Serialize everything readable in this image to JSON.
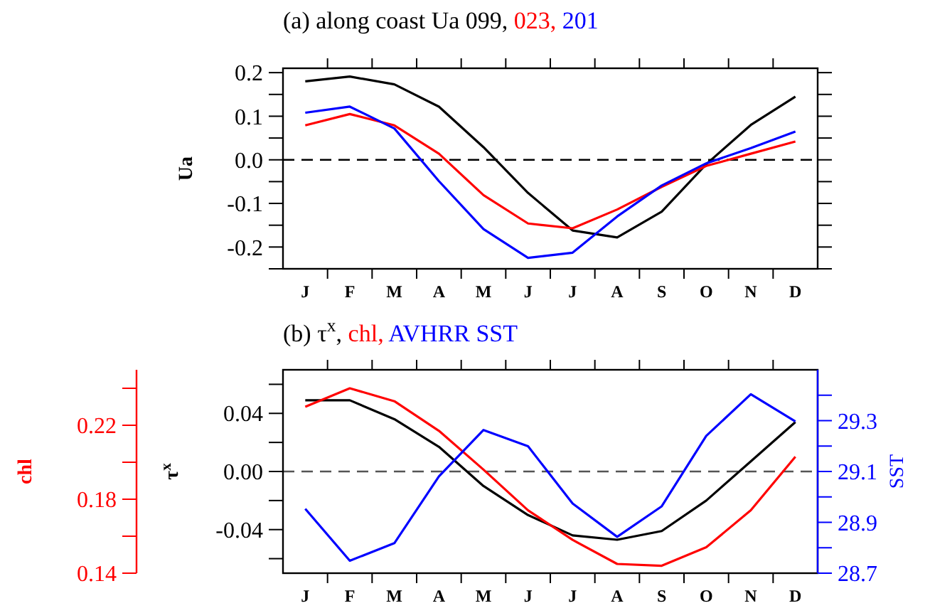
{
  "chart_data": [
    {
      "type": "line",
      "title": "(a) along coast Ua",
      "ylabel": "Ua",
      "categories": [
        "J",
        "F",
        "M",
        "A",
        "M",
        "J",
        "J",
        "A",
        "S",
        "O",
        "N",
        "D"
      ],
      "ylim": [
        -0.25,
        0.21
      ],
      "yticks": [
        {
          "value": -0.25,
          "label": null
        },
        {
          "value": -0.2,
          "label": "-0.2"
        },
        {
          "value": -0.15,
          "label": null
        },
        {
          "value": -0.1,
          "label": "-0.1"
        },
        {
          "value": -0.05,
          "label": null
        },
        {
          "value": 0,
          "label": "0.0"
        },
        {
          "value": 0.05,
          "label": null
        },
        {
          "value": 0.1,
          "label": "0.1"
        },
        {
          "value": 0.15,
          "label": null
        },
        {
          "value": 0.2,
          "label": "0.2"
        }
      ],
      "ref_lines": [
        {
          "axis": "y",
          "value": 0,
          "color": "#000000",
          "line_style": "dashed"
        }
      ],
      "series": [
        {
          "name": "099,",
          "color": "#000000",
          "values": [
            0.18,
            0.191,
            0.173,
            0.122,
            0.029,
            -0.076,
            -0.162,
            -0.178,
            -0.119,
            -0.01,
            0.08,
            0.145
          ]
        },
        {
          "name": "023,",
          "color": "#ff0000",
          "values": [
            0.079,
            0.105,
            0.079,
            0.014,
            -0.081,
            -0.146,
            -0.157,
            -0.114,
            -0.062,
            -0.014,
            0.014,
            0.042
          ]
        },
        {
          "name": "201",
          "color": "#0000ff",
          "values": [
            0.108,
            0.122,
            0.072,
            -0.049,
            -0.159,
            -0.225,
            -0.213,
            -0.13,
            -0.059,
            -0.008,
            0.027,
            0.065
          ]
        }
      ]
    },
    {
      "type": "line",
      "title": "(b)",
      "ylabel": "τ$^{x}$",
      "y2label": "SST",
      "y3label": "chl",
      "categories": [
        "J",
        "F",
        "M",
        "A",
        "M",
        "J",
        "J",
        "A",
        "S",
        "O",
        "N",
        "D"
      ],
      "ylim": [
        -0.07,
        0.07
      ],
      "yticks": [
        {
          "value": -0.06,
          "label": null
        },
        {
          "value": -0.04,
          "label": "-0.04"
        },
        {
          "value": -0.02,
          "label": null
        },
        {
          "value": 0,
          "label": "0.00"
        },
        {
          "value": 0.02,
          "label": null
        },
        {
          "value": 0.04,
          "label": "0.04"
        },
        {
          "value": 0.06,
          "label": null
        }
      ],
      "y2lim": [
        28.7,
        29.5
      ],
      "y2ticks": [
        {
          "value": 28.7,
          "label": "28.7"
        },
        {
          "value": 28.8,
          "label": null
        },
        {
          "value": 28.9,
          "label": "28.9"
        },
        {
          "value": 29.0,
          "label": null
        },
        {
          "value": 29.1,
          "label": "29.1"
        },
        {
          "value": 29.2,
          "label": null
        },
        {
          "value": 29.3,
          "label": "29.3"
        },
        {
          "value": 29.4,
          "label": null
        }
      ],
      "y3lim": [
        0.14,
        0.25
      ],
      "y3ticks": [
        0.14,
        0.18,
        0.22
      ],
      "ref_lines": [
        {
          "axis": "y",
          "value": 0,
          "color": "#555555",
          "line_style": "dashed"
        }
      ],
      "series": [
        {
          "name": "τ$^{x}$,",
          "color": "#000000",
          "values": [
            0.049,
            0.049,
            0.036,
            0.017,
            -0.01,
            -0.03,
            -0.044,
            -0.047,
            -0.041,
            -0.02,
            0.007,
            0.034
          ]
        },
        {
          "name": "chl,",
          "color": "#ff0000",
          "axis": "y3",
          "values": [
            0.23,
            0.24,
            0.233,
            0.217,
            0.196,
            0.174,
            0.158,
            0.145,
            0.144,
            0.154,
            0.174,
            0.203
          ]
        },
        {
          "name": "AVHRR SST",
          "color": "#0000ff",
          "axis": "y2",
          "values": [
            28.953,
            28.749,
            28.818,
            29.081,
            29.263,
            29.199,
            28.974,
            28.843,
            28.963,
            29.24,
            29.404,
            29.297
          ]
        }
      ]
    }
  ]
}
